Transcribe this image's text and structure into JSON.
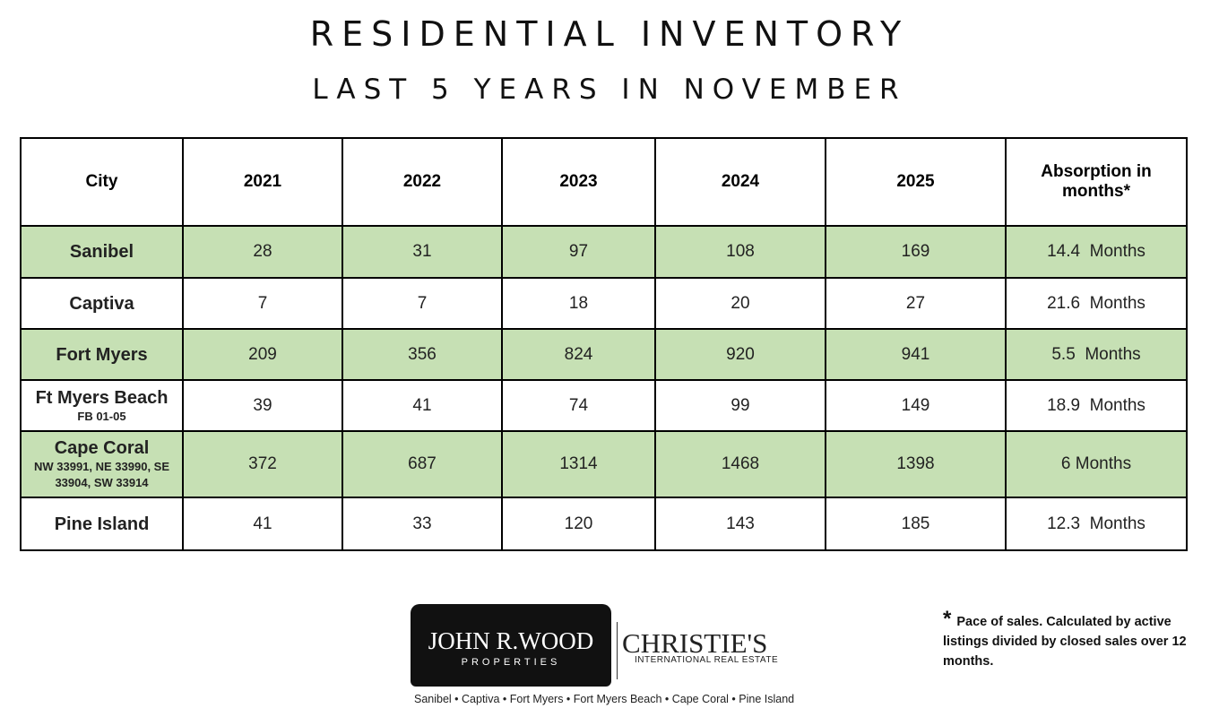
{
  "header": {
    "title": "RESIDENTIAL INVENTORY",
    "subtitle": "LAST 5 YEARS IN NOVEMBER"
  },
  "table": {
    "columns": [
      "City",
      "2021",
      "2022",
      "2023",
      "2024",
      "2025",
      "Absorption in months*"
    ],
    "rows": [
      {
        "city": "Sanibel",
        "values": [
          28,
          31,
          97,
          108,
          169
        ],
        "absorption": "14.4  Months"
      },
      {
        "city": "Captiva",
        "values": [
          7,
          7,
          18,
          20,
          27
        ],
        "absorption": "21.6  Months"
      },
      {
        "city": "Fort Myers",
        "values": [
          209,
          356,
          824,
          920,
          941
        ],
        "absorption": "5.5  Months"
      },
      {
        "city": "Ft Myers Beach",
        "note": "FB 01-05",
        "values": [
          39,
          41,
          74,
          99,
          149
        ],
        "absorption": "18.9  Months"
      },
      {
        "city": "Cape Coral",
        "note": "NW 33991, NE 33990, SE 33904, SW 33914",
        "values": [
          372,
          687,
          1314,
          1468,
          1398
        ],
        "absorption": "6 Months"
      },
      {
        "city": "Pine Island",
        "values": [
          41,
          33,
          120,
          143,
          185
        ],
        "absorption": "12.3  Months"
      }
    ]
  },
  "logo": {
    "name": "JOHN R.WOOD",
    "sub": "PROPERTIES",
    "partner": "CHRISTIE'S",
    "partner_sub": "INTERNATIONAL REAL ESTATE",
    "tagline": "Sanibel • Captiva • Fort Myers • Fort Myers Beach • Cape Coral • Pine Island"
  },
  "footnote": {
    "mark": "*",
    "text": "Pace of sales.  Calculated by active listings divided by closed sales over 12 months."
  }
}
